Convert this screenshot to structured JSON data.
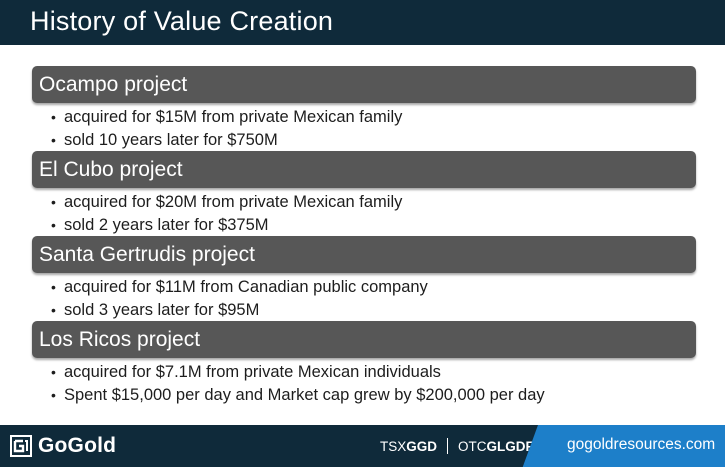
{
  "title": "History of Value Creation",
  "projects": [
    {
      "name": "Ocampo project",
      "bullets": [
        "acquired for $15M from private Mexican family",
        "sold 10 years later for $750M"
      ]
    },
    {
      "name": "El Cubo project",
      "bullets": [
        "acquired for $20M from private Mexican family",
        "sold 2 years later for $375M"
      ]
    },
    {
      "name": "Santa Gertrudis project",
      "bullets": [
        "acquired for $11M from Canadian public company",
        "sold 3 years later for $95M"
      ]
    },
    {
      "name": "Los Ricos project",
      "bullets": [
        "acquired for $7.1M from private Mexican individuals",
        "Spent $15,000 per day and Market cap grew by $200,000 per day"
      ]
    }
  ],
  "footer": {
    "logo_text": "GoGold",
    "logo_icon": "gogold-logo-icon",
    "tsx_label": "TSX",
    "tsx_code": "GGD",
    "otc_label": "OTC",
    "otc_code": "GLGDF",
    "url": "gogoldresources.com"
  },
  "colors": {
    "navy": "#0f2a3a",
    "header_gray": "#575757",
    "accent_blue": "#1d7fc9"
  }
}
